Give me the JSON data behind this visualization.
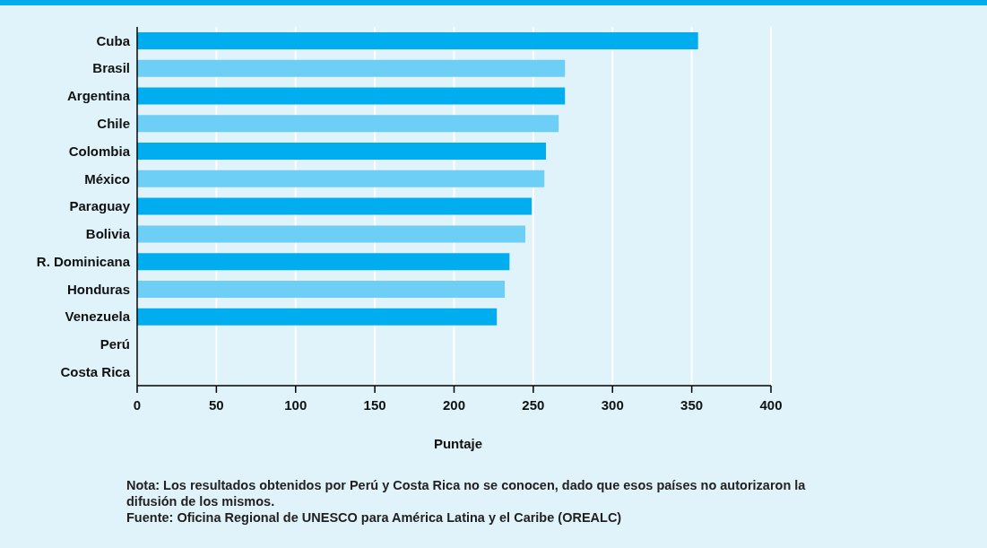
{
  "chart_data": {
    "type": "bar",
    "orientation": "horizontal",
    "categories": [
      "Cuba",
      "Brasil",
      "Argentina",
      "Chile",
      "Colombia",
      "México",
      "Paraguay",
      "Bolivia",
      "R. Dominicana",
      "Honduras",
      "Venezuela",
      "Perú",
      "Costa Rica"
    ],
    "values": [
      354,
      270,
      270,
      266,
      258,
      257,
      249,
      245,
      235,
      232,
      227,
      null,
      null
    ],
    "colors": [
      "#00aeef",
      "#6dcff6",
      "#00aeef",
      "#6dcff6",
      "#00aeef",
      "#6dcff6",
      "#00aeef",
      "#6dcff6",
      "#00aeef",
      "#6dcff6",
      "#00aeef",
      "#6dcff6",
      "#00aeef"
    ],
    "xlim": [
      0,
      400
    ],
    "xticks": [
      0,
      50,
      100,
      150,
      200,
      250,
      300,
      350,
      400
    ],
    "xlabel": "Puntaje",
    "grid": "x",
    "annotations": [
      "Nota: Los resultados obtenidos por Perú y Costa Rica no se conocen, dado que esos países no autorizaron la difusión de los mismos.",
      "Fuente: Oficina Regional de UNESCO para América Latina y el Caribe (OREALC)"
    ]
  }
}
